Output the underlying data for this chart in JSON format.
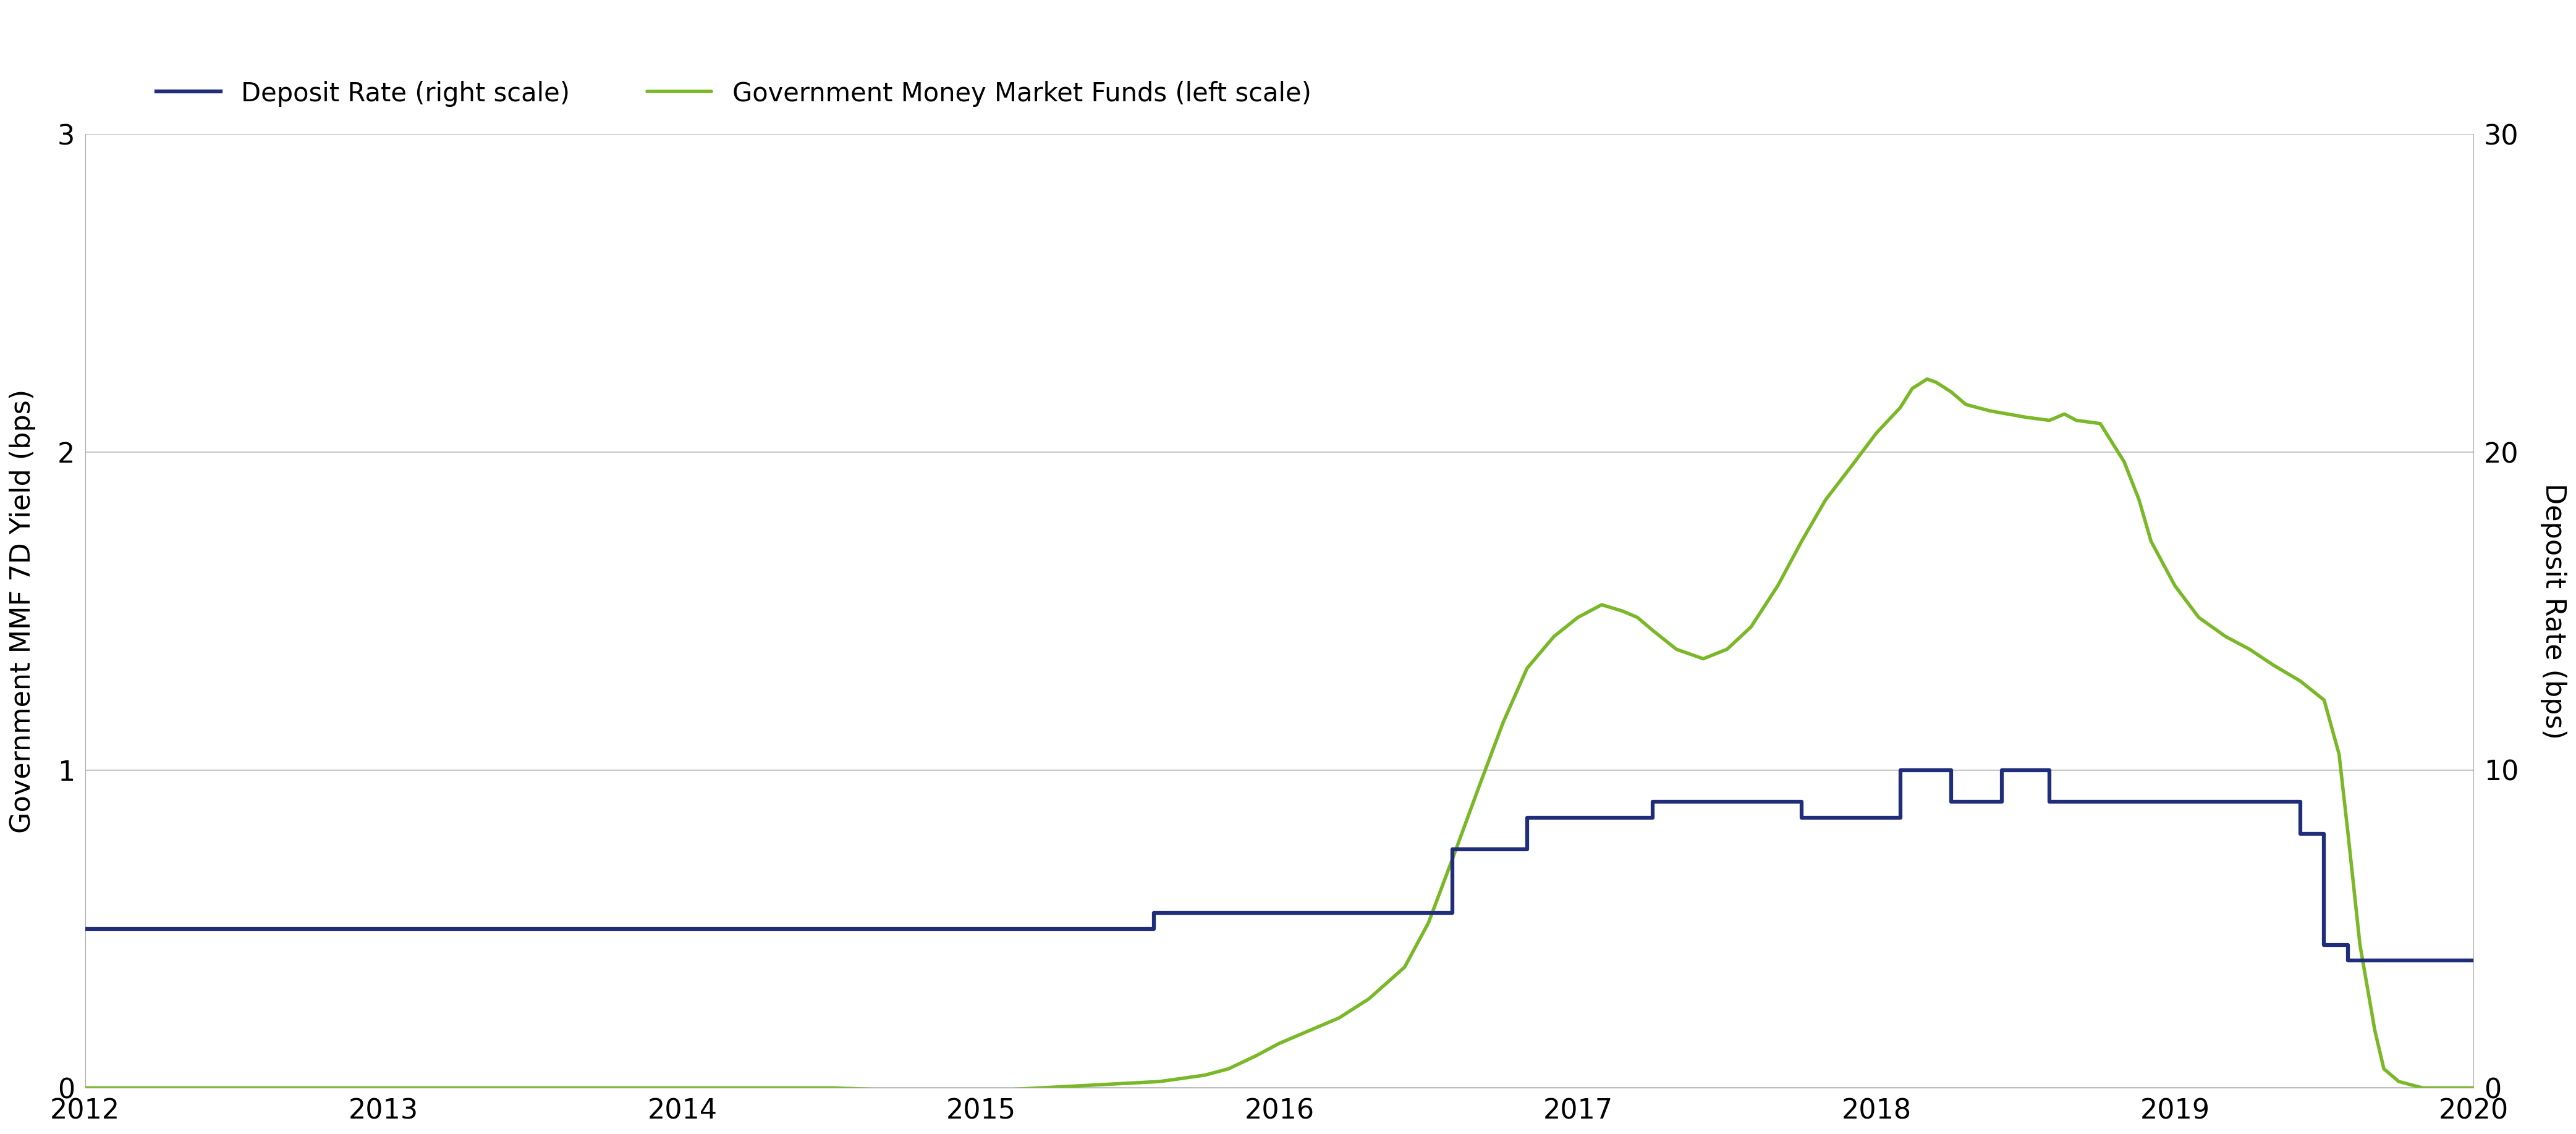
{
  "ylabel_left": "Government MMF 7D Yield (bps)",
  "ylabel_right": "Deposit Rate (bps)",
  "ylim_left": [
    0,
    3
  ],
  "ylim_right": [
    0,
    30
  ],
  "yticks_left": [
    0,
    1,
    2,
    3
  ],
  "yticks_right": [
    0,
    10,
    20,
    30
  ],
  "xlim": [
    2012.0,
    2020.0
  ],
  "xticks": [
    2012,
    2013,
    2014,
    2015,
    2016,
    2017,
    2018,
    2019,
    2020
  ],
  "legend_entries": [
    "Deposit Rate (right scale)",
    "Government Money Market Funds (left scale)"
  ],
  "deposit_color": "#1f2d7b",
  "mmf_color": "#7ab827",
  "background_color": "#ffffff",
  "grid_color": "#c8c8c8",
  "deposit_data_bps": [
    [
      2012.0,
      5.0
    ],
    [
      2015.58,
      5.0
    ],
    [
      2015.58,
      5.5
    ],
    [
      2015.75,
      5.5
    ],
    [
      2015.75,
      5.5
    ],
    [
      2016.58,
      5.5
    ],
    [
      2016.58,
      7.5
    ],
    [
      2016.83,
      7.5
    ],
    [
      2016.83,
      8.5
    ],
    [
      2017.25,
      8.5
    ],
    [
      2017.25,
      9.0
    ],
    [
      2017.75,
      9.0
    ],
    [
      2017.75,
      8.5
    ],
    [
      2018.08,
      8.5
    ],
    [
      2018.08,
      10.0
    ],
    [
      2018.25,
      10.0
    ],
    [
      2018.25,
      9.0
    ],
    [
      2018.42,
      9.0
    ],
    [
      2018.42,
      10.0
    ],
    [
      2018.58,
      10.0
    ],
    [
      2018.58,
      9.0
    ],
    [
      2019.42,
      9.0
    ],
    [
      2019.42,
      8.0
    ],
    [
      2019.5,
      8.0
    ],
    [
      2019.5,
      4.5
    ],
    [
      2019.58,
      4.5
    ],
    [
      2019.58,
      4.0
    ],
    [
      2020.0,
      4.0
    ]
  ],
  "mmf_data": [
    [
      2012.0,
      0.0
    ],
    [
      2013.0,
      0.0
    ],
    [
      2014.0,
      0.0
    ],
    [
      2014.5,
      0.0
    ],
    [
      2014.8,
      -0.01
    ],
    [
      2015.0,
      -0.01
    ],
    [
      2015.2,
      0.0
    ],
    [
      2015.4,
      0.01
    ],
    [
      2015.6,
      0.02
    ],
    [
      2015.75,
      0.04
    ],
    [
      2015.83,
      0.06
    ],
    [
      2015.92,
      0.1
    ],
    [
      2016.0,
      0.14
    ],
    [
      2016.1,
      0.18
    ],
    [
      2016.2,
      0.22
    ],
    [
      2016.3,
      0.28
    ],
    [
      2016.42,
      0.38
    ],
    [
      2016.5,
      0.52
    ],
    [
      2016.58,
      0.72
    ],
    [
      2016.67,
      0.95
    ],
    [
      2016.75,
      1.15
    ],
    [
      2016.83,
      1.32
    ],
    [
      2016.92,
      1.42
    ],
    [
      2017.0,
      1.48
    ],
    [
      2017.08,
      1.52
    ],
    [
      2017.15,
      1.5
    ],
    [
      2017.2,
      1.48
    ],
    [
      2017.25,
      1.44
    ],
    [
      2017.33,
      1.38
    ],
    [
      2017.42,
      1.35
    ],
    [
      2017.5,
      1.38
    ],
    [
      2017.58,
      1.45
    ],
    [
      2017.67,
      1.58
    ],
    [
      2017.75,
      1.72
    ],
    [
      2017.83,
      1.85
    ],
    [
      2017.92,
      1.96
    ],
    [
      2018.0,
      2.06
    ],
    [
      2018.08,
      2.14
    ],
    [
      2018.12,
      2.2
    ],
    [
      2018.17,
      2.23
    ],
    [
      2018.2,
      2.22
    ],
    [
      2018.25,
      2.19
    ],
    [
      2018.3,
      2.15
    ],
    [
      2018.38,
      2.13
    ],
    [
      2018.5,
      2.11
    ],
    [
      2018.58,
      2.1
    ],
    [
      2018.63,
      2.12
    ],
    [
      2018.67,
      2.1
    ],
    [
      2018.75,
      2.09
    ],
    [
      2018.83,
      1.97
    ],
    [
      2018.88,
      1.85
    ],
    [
      2018.92,
      1.72
    ],
    [
      2019.0,
      1.58
    ],
    [
      2019.08,
      1.48
    ],
    [
      2019.17,
      1.42
    ],
    [
      2019.25,
      1.38
    ],
    [
      2019.33,
      1.33
    ],
    [
      2019.42,
      1.28
    ],
    [
      2019.5,
      1.22
    ],
    [
      2019.55,
      1.05
    ],
    [
      2019.58,
      0.8
    ],
    [
      2019.62,
      0.45
    ],
    [
      2019.67,
      0.18
    ],
    [
      2019.7,
      0.06
    ],
    [
      2019.75,
      0.02
    ],
    [
      2019.83,
      0.0
    ],
    [
      2020.0,
      0.0
    ]
  ]
}
